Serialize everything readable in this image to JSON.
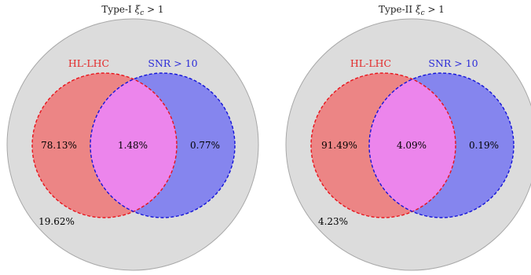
{
  "panels": [
    {
      "title_prefix": "Type-I ",
      "title_xi": "ξ",
      "title_sub": "c",
      "title_suffix": " > 1",
      "set_a_label": "HL-LHC",
      "set_b_label": "SNR > 10",
      "only_a_pct": "78.13%",
      "both_pct": "1.48%",
      "only_b_pct": "0.77%",
      "neither_pct": "19.62%"
    },
    {
      "title_prefix": "Type-II ",
      "title_xi": "ξ",
      "title_sub": "c",
      "title_suffix": " > 1",
      "set_a_label": "HL-LHC",
      "set_b_label": "SNR > 10",
      "only_a_pct": "91.49%",
      "both_pct": "4.09%",
      "only_b_pct": "0.19%",
      "neither_pct": "4.23%"
    }
  ],
  "colors": {
    "universe_fill": "#dcdcdc",
    "universe_stroke": "#a8a8a8",
    "set_a_fill": "#ec8585",
    "set_a_stroke": "#e8141c",
    "set_b_fill": "#8585ee",
    "set_b_stroke": "#1414d8",
    "overlap_fill": "#ec85ec"
  }
}
